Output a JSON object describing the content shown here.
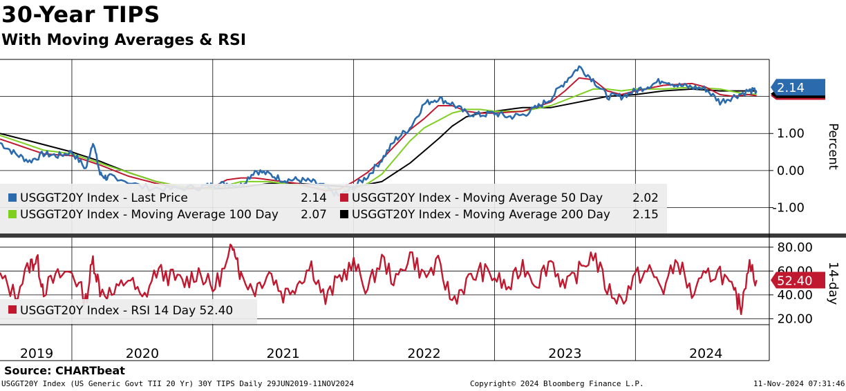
{
  "title": "30-Year TIPS",
  "subtitle": "With Moving Averages & RSI",
  "source": "Source: CHARTbeat",
  "footer": {
    "left": "USGGT20Y Index (US Generic Govt TII 20 Yr) 30Y TIPS  Daily 29JUN2019-11NOV2024",
    "center": "Copyright© 2024 Bloomberg Finance L.P.",
    "right": "11-Nov-2024 07:31:46"
  },
  "colors": {
    "price": "#2a6aad",
    "ma50": "#c0182f",
    "ma100": "#7fcf1f",
    "ma200": "#000000",
    "rsi": "#c0182f"
  },
  "chart_data": [
    {
      "type": "line",
      "panel": "upper",
      "ylabel": "Percent",
      "ylim": [
        -1.7,
        3.0
      ],
      "yticks": [
        -1.0,
        0.0,
        1.0
      ],
      "ytick_labels": [
        "-1.00",
        "0.00",
        "1.00"
      ],
      "xlim": [
        2019.49,
        2024.95
      ],
      "year_labels": [
        "2019",
        "2020",
        "2021",
        "2022",
        "2023",
        "2024"
      ],
      "year_positions": [
        2019.75,
        2020.5,
        2021.5,
        2022.5,
        2023.5,
        2024.5
      ],
      "year_boundaries": [
        2020.0,
        2021.0,
        2022.0,
        2023.0,
        2024.0
      ],
      "series": [
        {
          "key": "price",
          "name": "USGGT20Y Index - Last Price",
          "value": "2.14",
          "x": [
            2019.49,
            2019.6,
            2019.7,
            2019.8,
            2019.9,
            2020.0,
            2020.1,
            2020.15,
            2020.2,
            2020.25,
            2020.3,
            2020.5,
            2020.7,
            2020.9,
            2021.0,
            2021.1,
            2021.2,
            2021.3,
            2021.4,
            2021.5,
            2021.6,
            2021.7,
            2021.8,
            2021.9,
            2022.0,
            2022.1,
            2022.2,
            2022.3,
            2022.4,
            2022.5,
            2022.6,
            2022.7,
            2022.8,
            2022.9,
            2023.0,
            2023.1,
            2023.2,
            2023.3,
            2023.4,
            2023.5,
            2023.6,
            2023.7,
            2023.8,
            2023.9,
            2024.0,
            2024.1,
            2024.2,
            2024.3,
            2024.4,
            2024.5,
            2024.6,
            2024.7,
            2024.8,
            2024.86
          ],
          "y": [
            0.75,
            0.45,
            0.25,
            0.45,
            0.4,
            0.5,
            0.05,
            0.8,
            -0.1,
            -0.2,
            -0.15,
            -0.45,
            -0.5,
            -0.45,
            -0.4,
            -0.35,
            -0.4,
            0.0,
            -0.1,
            -0.25,
            -0.25,
            -0.3,
            -0.45,
            -0.7,
            -0.45,
            -0.15,
            0.3,
            0.85,
            1.15,
            1.8,
            1.95,
            1.8,
            1.55,
            1.5,
            1.55,
            1.45,
            1.5,
            1.7,
            1.95,
            2.4,
            2.8,
            2.45,
            2.0,
            2.0,
            2.15,
            2.3,
            2.45,
            2.3,
            2.25,
            2.2,
            1.85,
            2.0,
            2.15,
            2.14
          ]
        },
        {
          "key": "ma50",
          "name": "USGGT20Y Index - Moving Average 50 Day",
          "value": "2.02",
          "x": [
            2019.49,
            2019.8,
            2020.0,
            2020.2,
            2020.4,
            2020.6,
            2020.8,
            2021.0,
            2021.1,
            2021.2,
            2021.3,
            2021.4,
            2021.5,
            2021.6,
            2021.7,
            2021.8,
            2021.9,
            2022.0,
            2022.1,
            2022.2,
            2022.3,
            2022.4,
            2022.5,
            2022.6,
            2022.7,
            2022.8,
            2022.9,
            2023.0,
            2023.2,
            2023.4,
            2023.5,
            2023.6,
            2023.7,
            2023.8,
            2023.9,
            2024.0,
            2024.2,
            2024.4,
            2024.5,
            2024.6,
            2024.7,
            2024.8,
            2024.86
          ],
          "y": [
            0.85,
            0.45,
            0.4,
            0.15,
            -0.15,
            -0.35,
            -0.5,
            -0.45,
            -0.25,
            -0.2,
            -0.2,
            -0.25,
            -0.3,
            -0.35,
            -0.45,
            -0.55,
            -0.5,
            -0.3,
            -0.05,
            0.3,
            0.7,
            1.1,
            1.4,
            1.75,
            1.75,
            1.6,
            1.55,
            1.55,
            1.6,
            1.85,
            2.15,
            2.5,
            2.45,
            2.15,
            2.05,
            2.15,
            2.3,
            2.35,
            2.25,
            2.05,
            2.0,
            2.05,
            2.02
          ]
        },
        {
          "key": "ma100",
          "name": "USGGT20Y Index - Moving Average 100 Day",
          "value": "2.07",
          "x": [
            2019.49,
            2019.8,
            2020.0,
            2020.2,
            2020.4,
            2020.6,
            2020.8,
            2021.0,
            2021.2,
            2021.4,
            2021.6,
            2021.8,
            2022.0,
            2022.1,
            2022.2,
            2022.3,
            2022.4,
            2022.5,
            2022.6,
            2022.7,
            2022.8,
            2022.9,
            2023.0,
            2023.2,
            2023.4,
            2023.6,
            2023.7,
            2023.8,
            2023.9,
            2024.0,
            2024.2,
            2024.4,
            2024.6,
            2024.8,
            2024.86
          ],
          "y": [
            0.95,
            0.55,
            0.45,
            0.2,
            -0.05,
            -0.3,
            -0.45,
            -0.5,
            -0.3,
            -0.3,
            -0.4,
            -0.5,
            -0.5,
            -0.35,
            -0.1,
            0.35,
            0.8,
            1.15,
            1.35,
            1.55,
            1.65,
            1.65,
            1.6,
            1.6,
            1.75,
            2.05,
            2.2,
            2.2,
            2.15,
            2.2,
            2.2,
            2.25,
            2.2,
            2.05,
            2.07
          ]
        },
        {
          "key": "ma200",
          "name": "USGGT20Y Index - Moving Average 200 Day",
          "value": "2.15",
          "x": [
            2019.49,
            2019.7,
            2020.0,
            2020.2,
            2020.4,
            2020.6,
            2020.8,
            2021.0,
            2021.2,
            2021.4,
            2021.6,
            2021.8,
            2022.0,
            2022.2,
            2022.4,
            2022.6,
            2022.7,
            2022.8,
            2022.9,
            2023.0,
            2023.2,
            2023.4,
            2023.6,
            2023.8,
            2024.0,
            2024.2,
            2024.4,
            2024.6,
            2024.8,
            2024.86
          ],
          "y": [
            1.0,
            0.8,
            0.5,
            0.25,
            -0.05,
            -0.3,
            -0.45,
            -0.5,
            -0.45,
            -0.35,
            -0.35,
            -0.4,
            -0.45,
            -0.3,
            0.2,
            0.85,
            1.2,
            1.45,
            1.55,
            1.6,
            1.7,
            1.7,
            1.85,
            2.0,
            2.05,
            2.15,
            2.2,
            2.15,
            2.15,
            2.15
          ]
        }
      ]
    },
    {
      "type": "line",
      "panel": "lower",
      "ylabel": "14-day",
      "ylim": [
        15,
        88
      ],
      "yticks": [
        20,
        40,
        60,
        80
      ],
      "ytick_labels": [
        "20.00",
        "40.00",
        "60.00",
        "80.00"
      ],
      "series": [
        {
          "key": "rsi",
          "name": "USGGT20Y Index - RSI 14 Day",
          "value": "52.40",
          "x": [
            2019.49,
            2019.6,
            2019.7,
            2019.75,
            2019.8,
            2019.9,
            2020.0,
            2020.1,
            2020.15,
            2020.2,
            2020.3,
            2020.4,
            2020.5,
            2020.6,
            2020.7,
            2020.8,
            2020.9,
            2021.0,
            2021.1,
            2021.15,
            2021.2,
            2021.3,
            2021.4,
            2021.5,
            2021.6,
            2021.7,
            2021.8,
            2021.9,
            2022.0,
            2022.1,
            2022.2,
            2022.3,
            2022.4,
            2022.5,
            2022.6,
            2022.7,
            2022.8,
            2022.9,
            2023.0,
            2023.1,
            2023.2,
            2023.3,
            2023.4,
            2023.5,
            2023.6,
            2023.7,
            2023.8,
            2023.9,
            2024.0,
            2024.1,
            2024.2,
            2024.3,
            2024.4,
            2024.5,
            2024.6,
            2024.7,
            2024.75,
            2024.8,
            2024.86
          ],
          "y": [
            55,
            40,
            65,
            70,
            45,
            55,
            60,
            35,
            70,
            45,
            40,
            55,
            35,
            60,
            55,
            50,
            60,
            45,
            65,
            85,
            55,
            45,
            60,
            40,
            50,
            65,
            35,
            55,
            65,
            45,
            70,
            50,
            75,
            55,
            65,
            35,
            50,
            60,
            55,
            45,
            65,
            50,
            70,
            45,
            60,
            75,
            45,
            35,
            55,
            60,
            45,
            70,
            40,
            55,
            60,
            40,
            30,
            65,
            52.4
          ]
        }
      ]
    }
  ]
}
